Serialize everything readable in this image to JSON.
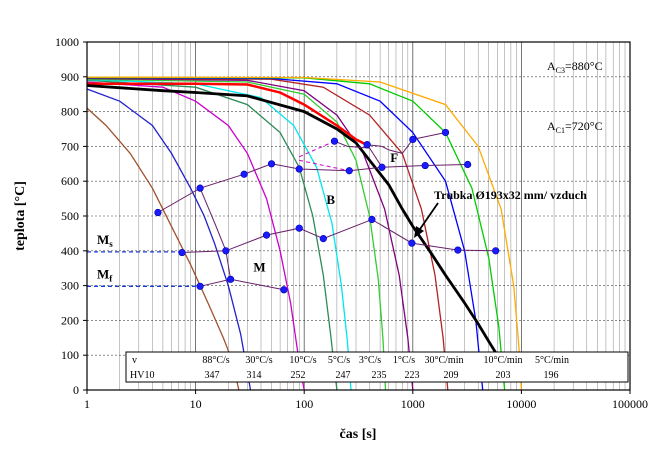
{
  "chart_data": {
    "type": "line",
    "xlabel": "čas [s]",
    "ylabel": "teplota [°C]",
    "xscale": "log",
    "xlim": [
      1,
      100000
    ],
    "ylim": [
      0,
      1000
    ],
    "x_ticks": [
      1,
      10,
      100,
      1000,
      10000,
      100000
    ],
    "x_tick_labels": [
      "1",
      "10",
      "100",
      "1000",
      "10000",
      "100000"
    ],
    "y_ticks": [
      0,
      100,
      200,
      300,
      400,
      500,
      600,
      700,
      800,
      900,
      1000
    ],
    "y_tick_labels": [
      "0",
      "100",
      "200",
      "300",
      "400",
      "500",
      "600",
      "700",
      "800",
      "900",
      "1000"
    ],
    "grid": true,
    "reference_lines": [
      {
        "label_main": "A",
        "label_sub": "C3",
        "label_rest": "=880°C",
        "y": 880
      },
      {
        "label_main": "A",
        "label_sub": "C1",
        "label_rest": "=720°C",
        "y": 720
      }
    ],
    "cooling_curves": [
      {
        "color": "#a0522d",
        "x": [
          1,
          1.5,
          2.5,
          4,
          6,
          9,
          13,
          18,
          22,
          25
        ],
        "y": [
          810,
          760,
          680,
          580,
          470,
          360,
          250,
          150,
          80,
          0
        ]
      },
      {
        "color": "#2222cc",
        "x": [
          1,
          2,
          4,
          6,
          9,
          12,
          15,
          20,
          26,
          32
        ],
        "y": [
          865,
          830,
          760,
          680,
          580,
          500,
          420,
          300,
          160,
          0
        ]
      },
      {
        "color": "#cc00cc",
        "x": [
          1,
          5,
          10,
          20,
          30,
          45,
          60,
          75,
          90,
          100
        ],
        "y": [
          885,
          870,
          830,
          760,
          680,
          550,
          400,
          250,
          80,
          0
        ]
      },
      {
        "color": "#2e8b57",
        "x": [
          1,
          10,
          30,
          60,
          90,
          120,
          150,
          175,
          200
        ],
        "y": [
          890,
          870,
          820,
          740,
          640,
          500,
          330,
          160,
          0
        ]
      },
      {
        "color": "#00e5ee",
        "x": [
          1,
          10,
          40,
          80,
          130,
          180,
          220,
          250,
          270
        ],
        "y": [
          892,
          880,
          840,
          760,
          640,
          480,
          300,
          140,
          0
        ]
      },
      {
        "color": "#33cc33",
        "x": [
          1,
          30,
          100,
          200,
          300,
          400,
          480,
          530,
          560
        ],
        "y": [
          893,
          885,
          850,
          770,
          660,
          500,
          320,
          150,
          0
        ]
      },
      {
        "color": "#800080",
        "x": [
          1,
          30,
          100,
          200,
          350,
          550,
          750,
          900,
          1000
        ],
        "y": [
          895,
          890,
          860,
          790,
          680,
          520,
          330,
          150,
          0
        ]
      },
      {
        "color": "#b22222",
        "x": [
          1,
          50,
          150,
          400,
          800,
          1200,
          1600,
          1900,
          2100
        ],
        "y": [
          896,
          893,
          870,
          790,
          680,
          520,
          330,
          150,
          0
        ]
      },
      {
        "color": "#0000ff",
        "x": [
          1,
          50,
          200,
          500,
          1000,
          2000,
          3000,
          3800,
          4400
        ],
        "y": [
          897,
          895,
          880,
          830,
          740,
          600,
          400,
          200,
          0
        ]
      },
      {
        "color": "#00cc00",
        "x": [
          1,
          100,
          400,
          1000,
          2000,
          3500,
          5000,
          6200,
          7000
        ],
        "y": [
          898,
          897,
          880,
          830,
          740,
          580,
          380,
          180,
          0
        ]
      },
      {
        "color": "#ffaa00",
        "x": [
          1,
          100,
          500,
          2000,
          4000,
          6500,
          8500,
          9500,
          10000
        ],
        "y": [
          899,
          898,
          885,
          820,
          700,
          520,
          300,
          120,
          0
        ]
      },
      {
        "color": "#ff0000",
        "width": 2.5,
        "x": [
          1,
          10,
          30,
          60,
          100,
          200,
          300,
          400
        ],
        "y": [
          880,
          880,
          878,
          855,
          820,
          760,
          720,
          700
        ]
      }
    ],
    "measured_curve": {
      "label": "Trubka Ø193x32 mm/ vzduch",
      "color": "#000000",
      "x": [
        1,
        5,
        10,
        30,
        100,
        200,
        300,
        400,
        600,
        800,
        1000,
        1500,
        2000,
        3000,
        4000,
        5000,
        6000
      ],
      "y": [
        875,
        860,
        855,
        845,
        800,
        750,
        710,
        660,
        590,
        520,
        470,
        390,
        330,
        250,
        190,
        140,
        100
      ]
    },
    "transformation_lines": [
      {
        "style": "solid",
        "x": [
          4.5,
          11,
          28,
          50,
          90,
          260,
          520,
          1300,
          3200
        ],
        "y": [
          510,
          580,
          620,
          650,
          635,
          630,
          640,
          645,
          648
        ]
      },
      {
        "style": "solid",
        "x": [
          7.5,
          19,
          45,
          90,
          150,
          420,
          980,
          2600,
          5800
        ],
        "y": [
          395,
          400,
          445,
          465,
          435,
          490,
          422,
          402,
          400
        ]
      },
      {
        "style": "solid",
        "x": [
          11,
          21,
          65
        ],
        "y": [
          298,
          318,
          288
        ]
      },
      {
        "style": "solid",
        "x": [
          11,
          15,
          19,
          21
        ],
        "y": [
          580,
          480,
          400,
          318
        ]
      },
      {
        "style": "solid",
        "x": [
          190,
          250,
          400,
          520
        ],
        "y": [
          715,
          700,
          695,
          640
        ]
      },
      {
        "style": "solid",
        "x": [
          380,
          520,
          600,
          800,
          1000
        ],
        "y": [
          705,
          700,
          690,
          680,
          720
        ]
      },
      {
        "style": "solid",
        "x": [
          1000,
          2000
        ],
        "y": [
          720,
          740
        ]
      },
      {
        "style": "dashed",
        "x": [
          90,
          190
        ],
        "y": [
          670,
          715
        ]
      },
      {
        "style": "dashed",
        "x": [
          90,
          260
        ],
        "y": [
          660,
          630
        ]
      }
    ],
    "data_points": {
      "x": [
        4.5,
        11,
        28,
        50,
        90,
        260,
        520,
        1300,
        3200,
        7.5,
        19,
        45,
        90,
        150,
        420,
        980,
        2600,
        5800,
        11,
        21,
        65,
        190,
        380,
        1000,
        2000
      ],
      "y": [
        510,
        580,
        620,
        650,
        635,
        630,
        640,
        645,
        648,
        395,
        400,
        445,
        465,
        435,
        490,
        422,
        402,
        400,
        298,
        318,
        288,
        715,
        705,
        720,
        740
      ]
    },
    "ms_line": {
      "label_main": "M",
      "label_sub": "s",
      "y": 397,
      "x_end": 7.5
    },
    "mf_line": {
      "label_main": "M",
      "label_sub": "f",
      "y": 298,
      "x_end": 11
    },
    "region_labels": [
      {
        "text": "F",
        "x": 620,
        "y": 655
      },
      {
        "text": "B",
        "x": 160,
        "y": 535
      },
      {
        "text": "M",
        "x": 34,
        "y": 340
      }
    ],
    "table": {
      "row1_header": "v",
      "row2_header": "HV10",
      "rates": [
        "88°C/s",
        "30°C/s",
        "10°C/s",
        "5°C/s",
        "3°C/s",
        "1°C/s",
        "30°C/min",
        "10°C/min",
        "5°C/min"
      ],
      "hardness": [
        "347",
        "314",
        "252",
        "247",
        "235",
        "223",
        "209",
        "203",
        "196"
      ]
    }
  }
}
